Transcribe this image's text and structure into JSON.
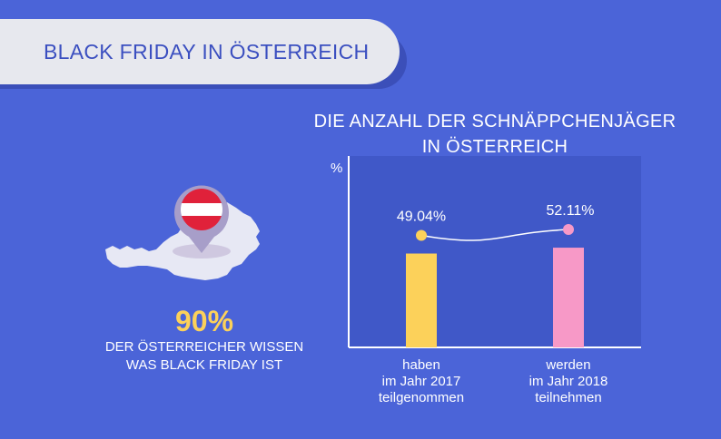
{
  "banner": {
    "title": "BLACK FRIDAY IN ÖSTERREICH"
  },
  "stat": {
    "value": "90%",
    "line1": "DER ÖSTERREICHER WISSEN",
    "line2": "WAS BLACK FRIDAY IST"
  },
  "chart_data": {
    "type": "bar",
    "title_line1": "DIE ANZAHL DER SCHNÄPPCHENJÄGER",
    "title_line2": "IN ÖSTERREICH",
    "ylabel": "%",
    "categories": [
      [
        "haben",
        "im Jahr 2017",
        "teilgenommen"
      ],
      [
        "werden",
        "im Jahr 2018",
        "teilnehmen"
      ]
    ],
    "values": [
      49.04,
      52.11
    ],
    "value_labels": [
      "49.04%",
      "52.11%"
    ],
    "ylim": [
      0,
      100
    ],
    "grid": false,
    "colors": {
      "bar1": "#fcd15a",
      "bar2": "#f799c7",
      "plot_area": "#4058c8",
      "axis": "#ffffff"
    }
  },
  "colors": {
    "background": "#4b64d8",
    "banner": "#e7e8ee",
    "banner_text": "#3b4fc0",
    "accent": "#fcd15a"
  }
}
